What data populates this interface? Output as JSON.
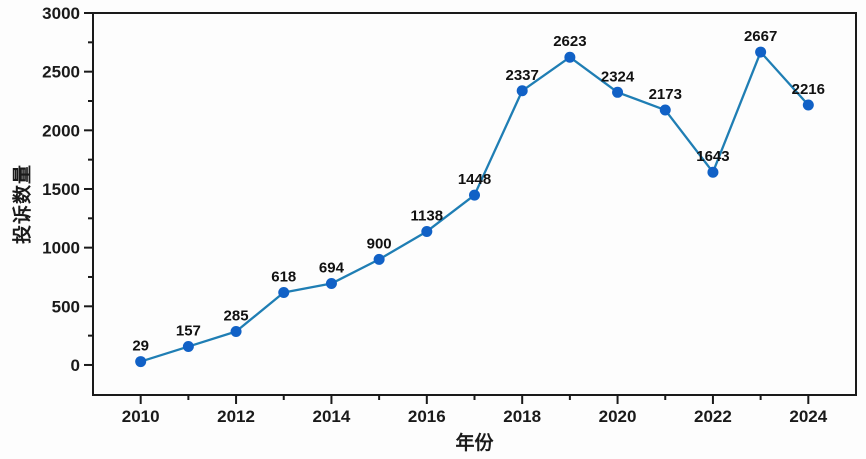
{
  "chart_data": {
    "type": "line",
    "title": "",
    "xlabel": "年份",
    "ylabel": "投诉数量",
    "x": [
      2010,
      2011,
      2012,
      2013,
      2014,
      2015,
      2016,
      2017,
      2018,
      2019,
      2020,
      2021,
      2022,
      2023,
      2024
    ],
    "values": [
      29,
      157,
      285,
      618,
      694,
      900,
      1138,
      1448,
      2337,
      2623,
      2324,
      2173,
      1643,
      2667,
      2216
    ],
    "point_labels": [
      "29",
      "157",
      "285",
      "618",
      "694",
      "900",
      "1138",
      "1448",
      "2337",
      "2623",
      "2324",
      "2173",
      "1643",
      "2667",
      "2216"
    ],
    "xlim": [
      2009,
      2025
    ],
    "ylim": [
      -256,
      3000
    ],
    "xticks_major": [
      2010,
      2012,
      2014,
      2016,
      2018,
      2020,
      2022,
      2024
    ],
    "xtick_labels": [
      "2010",
      "2012",
      "2014",
      "2016",
      "2018",
      "2020",
      "2022",
      "2024"
    ],
    "xticks_minor": [
      2011,
      2013,
      2015,
      2017,
      2019,
      2021,
      2023
    ],
    "yticks_major": [
      0,
      500,
      1000,
      1500,
      2000,
      2500,
      3000
    ],
    "ytick_labels": [
      "0",
      "500",
      "1000",
      "1500",
      "2000",
      "2500",
      "3000"
    ],
    "yticks_minor": [
      250,
      750,
      1250,
      1750,
      2250,
      2750
    ],
    "grid": "off",
    "legend": "none",
    "line_color": "#1f7eb4",
    "marker_color": "#1161c6",
    "axis_color": "#1a1a1a",
    "label_color": "#111111",
    "background": "#fdfdfd"
  }
}
